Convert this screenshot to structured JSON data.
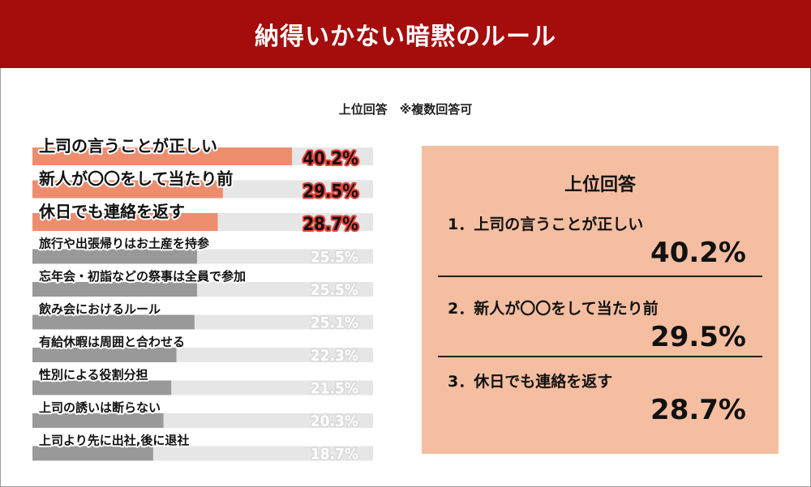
{
  "header": {
    "title": "納得いかない暗黙のルール"
  },
  "subtitle": "上位回答　※複数回答可",
  "colors": {
    "header_bg": "#a50c0c",
    "top_bar": "#ee8d6e",
    "other_bar": "#999999",
    "track": "#e6e6e6",
    "top_value_outline": "#e8443a",
    "other_value": "#d9d9d9",
    "panel_bg": "#f5bea0"
  },
  "chart_data": {
    "type": "bar",
    "orientation": "horizontal",
    "xlim": [
      0,
      50
    ],
    "unit": "%",
    "categories": [
      "上司の言うことが正しい",
      "新人が〇〇をして当たり前",
      "休日でも連絡を返す",
      "旅行や出張帰りはお土産を持参",
      "忘年会・初詣などの祭事は全員で参加",
      "飲み会におけるルール",
      "有給休暇は周囲と合わせる",
      "性別による役割分担",
      "上司の誘いは断らない",
      "上司より先に出社,後に退社"
    ],
    "values": [
      40.2,
      29.5,
      28.7,
      25.5,
      25.5,
      25.1,
      22.3,
      21.5,
      20.3,
      18.7
    ],
    "value_labels": [
      "40.2%",
      "29.5%",
      "28.7%",
      "25.5%",
      "25.5%",
      "25.1%",
      "22.3%",
      "21.5%",
      "20.3%",
      "18.7%"
    ],
    "highlight_top": 3,
    "grid": false
  },
  "top_panel": {
    "title": "上位回答",
    "items": [
      {
        "rank": "1．上司の言うことが正しい",
        "value": "40.2%"
      },
      {
        "rank": "2．新人が〇〇をして当たり前",
        "value": "29.5%"
      },
      {
        "rank": "3．休日でも連絡を返す",
        "value": "28.7%"
      }
    ]
  }
}
